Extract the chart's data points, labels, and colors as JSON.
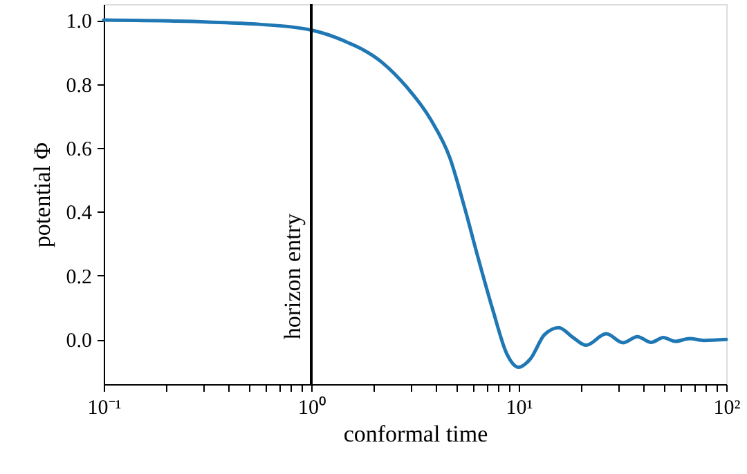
{
  "chart_data": {
    "type": "line",
    "xlabel": "conformal time",
    "ylabel": "potential Φ",
    "log": "x",
    "grid": false,
    "marker": "none",
    "line_style": "solid",
    "xlim": [
      0.1,
      100
    ],
    "ylim": [
      -0.14,
      1.05
    ],
    "xticks": [
      {
        "value": 0.1,
        "label": "10⁻¹"
      },
      {
        "value": 0.2,
        "label": null
      },
      {
        "value": 0.3,
        "label": null
      },
      {
        "value": 0.4,
        "label": null
      },
      {
        "value": 0.5,
        "label": null
      },
      {
        "value": 0.6,
        "label": null
      },
      {
        "value": 0.7,
        "label": null
      },
      {
        "value": 0.8,
        "label": null
      },
      {
        "value": 0.9,
        "label": null
      },
      {
        "value": 1,
        "label": "10⁰"
      },
      {
        "value": 2,
        "label": null
      },
      {
        "value": 3,
        "label": null
      },
      {
        "value": 4,
        "label": null
      },
      {
        "value": 5,
        "label": null
      },
      {
        "value": 6,
        "label": null
      },
      {
        "value": 7,
        "label": null
      },
      {
        "value": 8,
        "label": null
      },
      {
        "value": 9,
        "label": null
      },
      {
        "value": 10,
        "label": "10¹"
      },
      {
        "value": 20,
        "label": null
      },
      {
        "value": 30,
        "label": null
      },
      {
        "value": 40,
        "label": null
      },
      {
        "value": 50,
        "label": null
      },
      {
        "value": 60,
        "label": null
      },
      {
        "value": 70,
        "label": null
      },
      {
        "value": 80,
        "label": null
      },
      {
        "value": 90,
        "label": null
      },
      {
        "value": 100,
        "label": "10²"
      }
    ],
    "yticks": [
      {
        "value": 0,
        "label": "0.0"
      },
      0.2,
      0.4,
      0.6,
      0.8,
      {
        "value": 1,
        "label": "1.0"
      }
    ],
    "ref_lines": [
      {
        "axis": "x",
        "value": 1,
        "label": "horizon entry",
        "color": "#000000"
      }
    ],
    "series": [
      {
        "color": "#1f77b4",
        "x": [
          0.1,
          0.32,
          0.56,
          1,
          1.44,
          2.2,
          2.87,
          3.77,
          4.66,
          5.45,
          6.38,
          7.52,
          8.76,
          10,
          11.4,
          13.3,
          15.6,
          18.2,
          21.1,
          26.4,
          31.8,
          37.3,
          43.5,
          49.7,
          56.8,
          66.6,
          77.9,
          100
        ],
        "values": [
          1.0,
          0.994,
          0.987,
          0.969,
          0.935,
          0.867,
          0.792,
          0.688,
          0.568,
          0.419,
          0.254,
          0.09,
          -0.045,
          -0.087,
          -0.06,
          0.015,
          0.037,
          0.007,
          -0.018,
          0.018,
          -0.01,
          0.009,
          -0.009,
          0.006,
          -0.006,
          0.003,
          -0.003,
          0.0
        ]
      }
    ]
  }
}
